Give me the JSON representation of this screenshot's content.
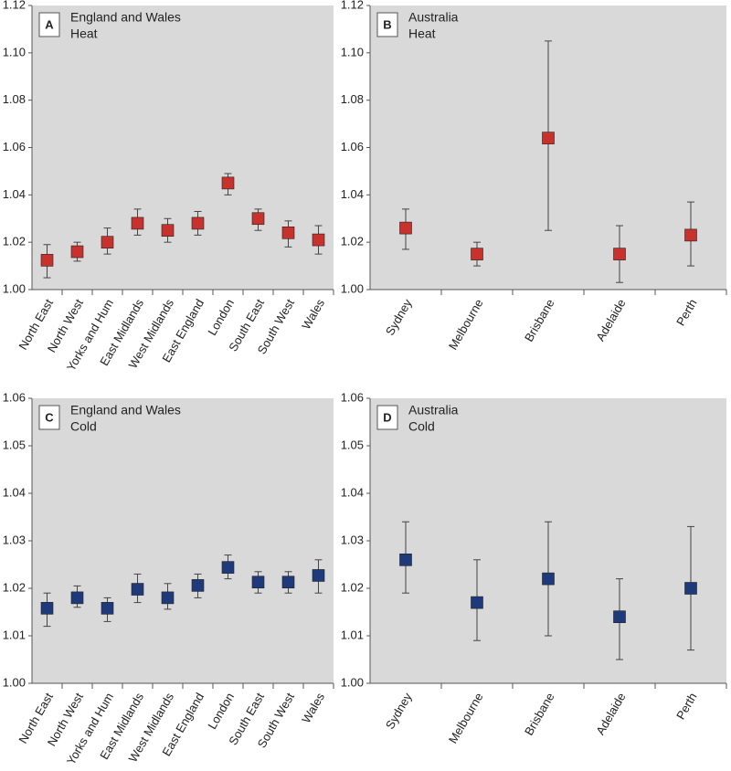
{
  "chart_data": [
    {
      "type": "errorbar",
      "label": "A",
      "title": "England and Wales",
      "subtitle": "Heat",
      "categories": [
        "North East",
        "North West",
        "Yorks and Hum",
        "East Midlands",
        "West Midlands",
        "East England",
        "London",
        "South East",
        "South West",
        "Wales"
      ],
      "series": [
        {
          "color": "#c8322d",
          "values": [
            1.0124,
            1.016,
            1.02,
            1.028,
            1.025,
            1.028,
            1.045,
            1.03,
            1.024,
            1.021
          ],
          "lower": [
            1.005,
            1.012,
            1.015,
            1.023,
            1.02,
            1.023,
            1.04,
            1.025,
            1.018,
            1.015
          ],
          "upper": [
            1.019,
            1.02,
            1.026,
            1.034,
            1.03,
            1.033,
            1.049,
            1.034,
            1.029,
            1.027
          ]
        }
      ],
      "ylim": [
        1.0,
        1.12
      ],
      "yticks": [
        {
          "value": 1.0,
          "label": "1.00"
        },
        1.02,
        1.04,
        1.06,
        1.08,
        {
          "value": 1.1,
          "label": "1.10"
        },
        1.12
      ]
    },
    {
      "type": "errorbar",
      "label": "B",
      "title": "Australia",
      "subtitle": "Heat",
      "categories": [
        "Sydney",
        "Melbourne",
        "Brisbane",
        "Adelaide",
        "Perth"
      ],
      "series": [
        {
          "color": "#c8322d",
          "values": [
            1.026,
            1.015,
            1.064,
            1.015,
            1.023
          ],
          "lower": [
            1.017,
            1.01,
            1.025,
            1.003,
            1.01
          ],
          "upper": [
            1.034,
            1.02,
            1.105,
            1.027,
            1.037
          ]
        }
      ],
      "ylim": [
        1.0,
        1.12
      ],
      "yticks": [
        {
          "value": 1.0,
          "label": "1.00"
        },
        1.02,
        1.04,
        1.06,
        1.08,
        {
          "value": 1.1,
          "label": "1.10"
        },
        1.12
      ]
    },
    {
      "type": "errorbar",
      "label": "C",
      "title": "England and Wales",
      "subtitle": "Cold",
      "categories": [
        "North East",
        "North West",
        "Yorks and Hum",
        "East Midlands",
        "West Midlands",
        "East England",
        "London",
        "South East",
        "South West",
        "Wales"
      ],
      "series": [
        {
          "color": "#1f3a7a",
          "values": [
            1.0158,
            1.018,
            1.0158,
            1.0198,
            1.018,
            1.0206,
            1.0244,
            1.0213,
            1.0213,
            1.0227
          ],
          "lower": [
            1.012,
            1.016,
            1.013,
            1.017,
            1.0156,
            1.018,
            1.022,
            1.019,
            1.019,
            1.019
          ],
          "upper": [
            1.019,
            1.0205,
            1.018,
            1.023,
            1.021,
            1.023,
            1.027,
            1.0235,
            1.0235,
            1.026
          ]
        }
      ],
      "ylim": [
        1.0,
        1.06
      ],
      "yticks": [
        {
          "value": 1.0,
          "label": "1.00"
        },
        1.01,
        1.02,
        1.03,
        1.04,
        1.05,
        1.06
      ]
    },
    {
      "type": "errorbar",
      "label": "D",
      "title": "Australia",
      "subtitle": "Cold",
      "categories": [
        "Sydney",
        "Melbourne",
        "Brisbane",
        "Adelaide",
        "Perth"
      ],
      "series": [
        {
          "color": "#1f3a7a",
          "values": [
            1.026,
            1.017,
            1.022,
            1.014,
            1.02
          ],
          "lower": [
            1.019,
            1.009,
            1.01,
            1.005,
            1.007
          ],
          "upper": [
            1.034,
            1.026,
            1.034,
            1.022,
            1.033
          ]
        }
      ],
      "ylim": [
        1.0,
        1.06
      ],
      "yticks": [
        {
          "value": 1.0,
          "label": "1.00"
        },
        1.01,
        1.02,
        1.03,
        1.04,
        1.05,
        1.06
      ]
    }
  ]
}
